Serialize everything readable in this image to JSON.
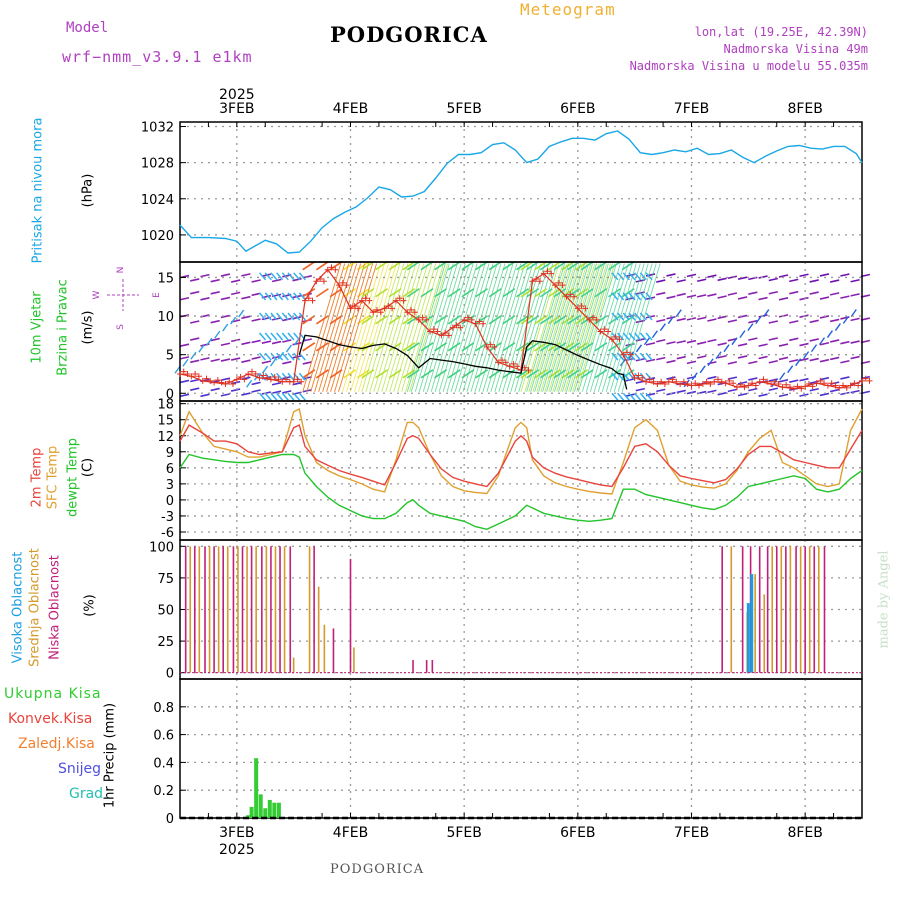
{
  "header": {
    "model_label": "Model",
    "model_name": "wrf−nmm_v3.9.1  e1km",
    "station": "PODGORICA",
    "product": "Meteogram",
    "lonlat": "lon,lat (19.25E, 42.39N)",
    "elevation": "Nadmorska Visina 49m",
    "model_elevation": "Nadmorska Visina u modelu 55.035m",
    "watermark": "made by Angel",
    "footer_station": "PODGORICA"
  },
  "colors": {
    "pressure": "#1aa7e6",
    "temp2m": "#e8443c",
    "sfc_temp": "#e0a030",
    "dewpoint": "#22c42a",
    "high_cloud": "#1a9ee0",
    "mid_cloud": "#d49a2c",
    "low_cloud": "#c0207a",
    "precip": "#33cc33",
    "purple_text": "#b040c0",
    "orange_text": "#f0b030"
  },
  "chart_data": [
    {
      "type": "line",
      "panel": "pressure",
      "ylabel_name": "Pritisak na nivou mora",
      "ylabel_unit": "(hPa)",
      "ylim": [
        1017,
        1032.5
      ],
      "yticks": [
        1020,
        1024,
        1028,
        1032
      ],
      "xlim": [
        2.5,
        8.5
      ],
      "x_ticks": [
        "3FEB",
        "4FEB",
        "5FEB",
        "6FEB",
        "7FEB",
        "8FEB"
      ],
      "x_tick_values": [
        3,
        4,
        5,
        6,
        7,
        8
      ],
      "x_year": "2025",
      "grid": true,
      "series": [
        {
          "x": [
            2.5,
            2.6,
            2.75,
            2.9,
            3.0,
            3.08,
            3.15,
            3.25,
            3.35,
            3.45,
            3.55,
            3.65,
            3.75,
            3.85,
            3.95,
            4.05,
            4.15,
            4.25,
            4.35,
            4.45,
            4.55,
            4.65,
            4.75,
            4.85,
            4.95,
            5.05,
            5.15,
            5.25,
            5.35,
            5.45,
            5.55,
            5.65,
            5.75,
            5.85,
            5.95,
            6.05,
            6.15,
            6.25,
            6.35,
            6.45,
            6.55,
            6.65,
            6.75,
            6.85,
            6.95,
            7.05,
            7.15,
            7.25,
            7.35,
            7.45,
            7.55,
            7.65,
            7.75,
            7.85,
            7.95,
            8.05,
            8.15,
            8.25,
            8.35,
            8.45,
            8.5
          ],
          "values": [
            1021.1,
            1019.7,
            1019.7,
            1019.6,
            1019.3,
            1018.2,
            1018.7,
            1019.4,
            1019.0,
            1018.0,
            1018.1,
            1019.3,
            1020.8,
            1021.8,
            1022.5,
            1023.1,
            1024.1,
            1025.3,
            1025.0,
            1024.2,
            1024.3,
            1024.8,
            1026.3,
            1027.9,
            1028.9,
            1028.9,
            1029.1,
            1030.0,
            1030.2,
            1029.4,
            1028.0,
            1028.4,
            1029.8,
            1030.3,
            1030.7,
            1030.7,
            1030.5,
            1031.2,
            1031.5,
            1030.6,
            1029.1,
            1028.9,
            1029.1,
            1029.4,
            1029.2,
            1029.6,
            1028.9,
            1029.0,
            1029.4,
            1028.6,
            1028.0,
            1028.7,
            1029.3,
            1029.8,
            1029.9,
            1029.6,
            1029.5,
            1029.8,
            1029.8,
            1029.0,
            1028.0
          ]
        }
      ]
    },
    {
      "type": "line",
      "panel": "wind",
      "ylabel_name": "10m Vjetar",
      "ylabel_name2": "Brzina i Pravac",
      "ylabel_unit": "(m/s)",
      "compass_n": "N",
      "compass_e": "E",
      "compass_w": "W",
      "compass_s": "S",
      "ylim": [
        -1,
        17
      ],
      "yticks": [
        0,
        5,
        10,
        15
      ],
      "xlim": [
        2.5,
        8.5
      ],
      "grid": true,
      "series": [
        {
          "name": "speed",
          "x": [
            3.55,
            3.6,
            3.7,
            3.8,
            3.9,
            4.0,
            4.1,
            4.2,
            4.3,
            4.4,
            4.5,
            4.6,
            4.7,
            4.8,
            4.9,
            5.0,
            5.1,
            5.2,
            5.3,
            5.4,
            5.5,
            5.55,
            5.6,
            5.7,
            5.8,
            5.9,
            6.0,
            6.1,
            6.2,
            6.3,
            6.35,
            6.4,
            6.43
          ],
          "values": [
            5.0,
            7.5,
            7.3,
            6.8,
            6.3,
            6.0,
            5.8,
            6.2,
            6.4,
            5.8,
            4.9,
            3.3,
            4.5,
            4.3,
            4.1,
            3.8,
            3.5,
            3.3,
            3.0,
            2.8,
            2.6,
            6.0,
            6.8,
            6.6,
            6.3,
            5.6,
            4.9,
            4.3,
            3.7,
            3.2,
            2.6,
            2.4,
            0.5
          ]
        },
        {
          "name": "gust",
          "x": [
            2.5,
            2.6,
            2.7,
            2.8,
            2.9,
            3.0,
            3.1,
            3.2,
            3.3,
            3.4,
            3.5,
            3.6,
            3.7,
            3.8,
            3.9,
            4.0,
            4.1,
            4.2,
            4.3,
            4.4,
            4.5,
            4.6,
            4.7,
            4.8,
            4.9,
            5.0,
            5.1,
            5.2,
            5.3,
            5.4,
            5.5,
            5.6,
            5.7,
            5.8,
            5.9,
            6.0,
            6.1,
            6.2,
            6.3,
            6.4,
            6.5,
            6.6,
            6.7,
            6.8,
            6.9,
            7.0,
            7.1,
            7.2,
            7.3,
            7.4,
            7.5,
            7.6,
            7.7,
            7.8,
            7.9,
            8.0,
            8.1,
            8.2,
            8.3,
            8.4,
            8.5
          ],
          "values": [
            2.5,
            2.2,
            1.6,
            1.4,
            1.2,
            1.8,
            2.5,
            2.0,
            1.8,
            1.5,
            1.5,
            12.0,
            14.5,
            16.0,
            14.0,
            11.0,
            12.0,
            10.5,
            11.0,
            12.0,
            10.5,
            9.5,
            8.0,
            7.5,
            8.5,
            9.5,
            9.0,
            6.0,
            4.0,
            3.5,
            3.0,
            14.5,
            15.5,
            14.0,
            12.5,
            11.0,
            9.5,
            8.0,
            7.0,
            5.0,
            2.0,
            1.5,
            1.2,
            1.5,
            1.2,
            1.0,
            1.2,
            1.5,
            1.3,
            0.8,
            1.0,
            1.5,
            1.2,
            0.8,
            0.6,
            0.9,
            1.3,
            1.0,
            0.7,
            1.0,
            1.6
          ]
        }
      ]
    },
    {
      "type": "line",
      "panel": "temperature",
      "ylabel_t2m": "2m Temp",
      "ylabel_sfc": "SFC Temp",
      "ylabel_dew": "dewpt Temp",
      "ylabel_unit": "(C)",
      "ylim": [
        -7.5,
        18.5
      ],
      "yticks": [
        -6,
        -3,
        0,
        3,
        6,
        9,
        12,
        15,
        18
      ],
      "xlim": [
        2.5,
        8.5
      ],
      "grid": true,
      "series": [
        {
          "name": "2m Temp",
          "x": [
            2.5,
            2.58,
            2.7,
            2.8,
            2.9,
            3.0,
            3.1,
            3.2,
            3.3,
            3.4,
            3.5,
            3.55,
            3.6,
            3.7,
            3.8,
            3.9,
            4.0,
            4.1,
            4.2,
            4.3,
            4.4,
            4.5,
            4.55,
            4.6,
            4.7,
            4.8,
            4.9,
            5.0,
            5.1,
            5.2,
            5.3,
            5.45,
            5.5,
            5.55,
            5.6,
            5.7,
            5.8,
            5.9,
            6.0,
            6.1,
            6.2,
            6.3,
            6.4,
            6.5,
            6.6,
            6.7,
            6.8,
            6.9,
            7.0,
            7.1,
            7.2,
            7.3,
            7.4,
            7.5,
            7.6,
            7.7,
            7.8,
            7.9,
            8.0,
            8.1,
            8.2,
            8.3,
            8.4,
            8.5
          ],
          "values": [
            11.0,
            14.0,
            12.5,
            11.0,
            11.0,
            10.5,
            9.0,
            8.5,
            8.8,
            9.0,
            13.5,
            14.0,
            10.0,
            7.5,
            6.5,
            5.5,
            4.8,
            4.2,
            3.5,
            2.8,
            7.0,
            11.5,
            12.0,
            11.5,
            8.5,
            5.8,
            4.2,
            3.5,
            3.0,
            2.5,
            5.0,
            11.0,
            12.0,
            11.0,
            8.0,
            6.0,
            5.0,
            4.3,
            3.8,
            3.3,
            2.8,
            2.5,
            6.0,
            10.0,
            10.5,
            9.0,
            6.5,
            4.5,
            4.0,
            3.6,
            3.2,
            3.8,
            5.8,
            8.5,
            10.0,
            10.0,
            8.8,
            7.5,
            7.0,
            6.5,
            6.0,
            6.0,
            9.5,
            13.0
          ]
        },
        {
          "name": "SFC Temp",
          "x": [
            2.5,
            2.58,
            2.7,
            2.8,
            2.9,
            3.0,
            3.1,
            3.2,
            3.3,
            3.4,
            3.5,
            3.55,
            3.6,
            3.7,
            3.8,
            3.9,
            4.0,
            4.1,
            4.2,
            4.3,
            4.4,
            4.5,
            4.55,
            4.6,
            4.7,
            4.8,
            4.9,
            5.0,
            5.1,
            5.2,
            5.3,
            5.45,
            5.5,
            5.55,
            5.6,
            5.7,
            5.8,
            5.9,
            6.0,
            6.1,
            6.2,
            6.3,
            6.4,
            6.5,
            6.6,
            6.7,
            6.8,
            6.9,
            7.0,
            7.1,
            7.2,
            7.3,
            7.4,
            7.5,
            7.6,
            7.7,
            7.8,
            7.9,
            8.0,
            8.1,
            8.2,
            8.3,
            8.4,
            8.5
          ],
          "values": [
            12.0,
            16.5,
            12.5,
            10.0,
            9.5,
            9.0,
            8.0,
            8.0,
            8.5,
            9.0,
            16.5,
            17.0,
            12.0,
            7.0,
            5.5,
            4.5,
            3.8,
            3.0,
            2.0,
            1.5,
            7.5,
            14.5,
            14.5,
            13.5,
            8.5,
            4.5,
            2.5,
            1.7,
            1.4,
            1.2,
            4.5,
            13.5,
            14.5,
            13.5,
            7.5,
            4.5,
            3.2,
            2.5,
            2.0,
            1.6,
            1.3,
            1.1,
            7.0,
            13.5,
            15.0,
            13.0,
            6.5,
            3.5,
            2.8,
            2.4,
            2.2,
            3.0,
            5.5,
            9.0,
            11.5,
            13.0,
            7.0,
            6.0,
            4.5,
            3.0,
            2.5,
            3.0,
            13.0,
            17.0
          ]
        },
        {
          "name": "dewpt Temp",
          "x": [
            2.5,
            2.58,
            2.7,
            2.8,
            2.9,
            3.0,
            3.1,
            3.2,
            3.3,
            3.4,
            3.5,
            3.55,
            3.6,
            3.7,
            3.8,
            3.9,
            4.0,
            4.1,
            4.2,
            4.3,
            4.4,
            4.5,
            4.55,
            4.6,
            4.7,
            4.8,
            4.9,
            5.0,
            5.1,
            5.2,
            5.3,
            5.45,
            5.5,
            5.55,
            5.6,
            5.7,
            5.8,
            5.9,
            6.0,
            6.1,
            6.2,
            6.3,
            6.4,
            6.5,
            6.6,
            6.7,
            6.8,
            6.9,
            7.0,
            7.1,
            7.2,
            7.3,
            7.4,
            7.5,
            7.6,
            7.7,
            7.8,
            7.9,
            8.0,
            8.1,
            8.2,
            8.3,
            8.4,
            8.5
          ],
          "values": [
            6.0,
            8.5,
            7.8,
            7.5,
            7.2,
            7.0,
            7.0,
            7.5,
            8.0,
            8.5,
            8.5,
            8.0,
            5.0,
            2.5,
            0.5,
            -1.0,
            -2.0,
            -3.0,
            -3.5,
            -3.5,
            -2.5,
            -0.5,
            0.0,
            -1.0,
            -2.5,
            -3.0,
            -3.5,
            -4.0,
            -5.0,
            -5.5,
            -4.5,
            -3.0,
            -2.0,
            -1.0,
            -1.5,
            -2.5,
            -3.0,
            -3.5,
            -3.8,
            -4.0,
            -3.8,
            -3.5,
            2.0,
            2.0,
            1.0,
            0.5,
            0.0,
            -0.5,
            -1.0,
            -1.5,
            -1.8,
            -1.0,
            0.5,
            2.5,
            3.0,
            3.5,
            4.0,
            4.5,
            4.0,
            2.0,
            1.5,
            2.0,
            4.0,
            5.5
          ]
        }
      ]
    },
    {
      "type": "bar",
      "panel": "clouds",
      "ylabel_high": "Visoka Oblacnost",
      "ylabel_mid": "Srednja Oblacnost",
      "ylabel_low": "Niska Oblacnost",
      "ylabel_unit": "(%)",
      "ylim": [
        -5,
        105
      ],
      "yticks": [
        0,
        25,
        50,
        75,
        100
      ],
      "xlim": [
        2.5,
        8.5
      ],
      "grid": true,
      "series": [
        {
          "name": "Niska Oblacnost",
          "x": [
            2.55,
            2.63,
            2.72,
            2.8,
            2.88,
            2.97,
            3.05,
            3.13,
            3.22,
            3.3,
            3.38,
            3.47,
            3.68,
            3.85,
            4.0,
            4.55,
            4.67,
            4.72,
            7.27,
            7.45,
            7.52,
            7.6,
            7.67,
            7.75,
            7.83,
            7.92,
            8.0,
            8.08,
            8.17
          ],
          "values": [
            100,
            100,
            100,
            100,
            100,
            100,
            100,
            100,
            100,
            100,
            100,
            100,
            100,
            35,
            90,
            10,
            10,
            10,
            100,
            100,
            100,
            100,
            100,
            100,
            100,
            100,
            100,
            100,
            100
          ]
        },
        {
          "name": "Srednja Oblacnost",
          "x": [
            2.59,
            2.67,
            2.76,
            2.84,
            2.92,
            3.01,
            3.09,
            3.17,
            3.26,
            3.34,
            3.42,
            3.5,
            3.64,
            3.72,
            3.77,
            4.03,
            7.35,
            7.49,
            7.56,
            7.64,
            7.71,
            7.79,
            7.87,
            7.96,
            8.04,
            8.12
          ],
          "values": [
            100,
            100,
            100,
            100,
            100,
            100,
            100,
            100,
            100,
            100,
            100,
            12,
            100,
            68,
            38,
            20,
            100,
            48,
            78,
            62,
            100,
            100,
            100,
            100,
            100,
            100
          ]
        },
        {
          "name": "Visoka Oblacnost",
          "x": [
            7.5,
            7.53
          ],
          "values": [
            55,
            78
          ]
        }
      ]
    },
    {
      "type": "bar",
      "panel": "precip",
      "legend": [
        "Ukupna Kisa",
        "Konvek.Kisa",
        "Zaledj.Kisa",
        "Snijeg",
        "Grad"
      ],
      "ylabel": "1hr Precip (mm)",
      "ylim": [
        0,
        1.0
      ],
      "yticks": [
        0,
        0.2,
        0.4,
        0.6,
        0.8
      ],
      "ytick_labels": [
        "0",
        "0.2",
        "0.4",
        "0.6",
        "0.8"
      ],
      "xlim": [
        2.5,
        8.5
      ],
      "grid": true,
      "series": [
        {
          "name": "Ukupna Kisa",
          "x": [
            3.1,
            3.13,
            3.17,
            3.21,
            3.25,
            3.29,
            3.33,
            3.37
          ],
          "values": [
            0.02,
            0.08,
            0.43,
            0.17,
            0.07,
            0.13,
            0.11,
            0.11
          ]
        }
      ]
    }
  ]
}
